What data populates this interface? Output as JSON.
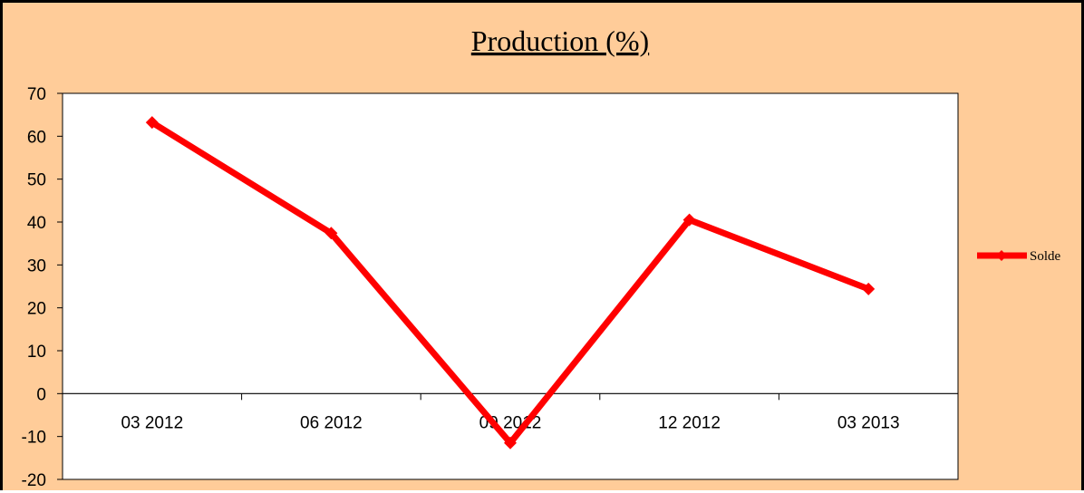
{
  "chart_data": {
    "type": "line",
    "title": "Production (%)",
    "xlabel": "",
    "ylabel": "",
    "categories": [
      "03 2012",
      "06 2012",
      "09 2012",
      "12 2012",
      "03 2013"
    ],
    "series": [
      {
        "name": "Solde",
        "values": [
          63.2,
          37.4,
          -11.5,
          40.5,
          24.4
        ],
        "color": "#ff0000",
        "marker": "diamond"
      }
    ],
    "ylim": [
      -20,
      70
    ],
    "yticks": [
      -20,
      -10,
      0,
      10,
      20,
      30,
      40,
      50,
      60,
      70
    ],
    "grid": false,
    "legend_position": "right",
    "colors": {
      "frame_background": "#ffcc99",
      "plot_background": "#ffffff",
      "axis": "#000000"
    }
  }
}
